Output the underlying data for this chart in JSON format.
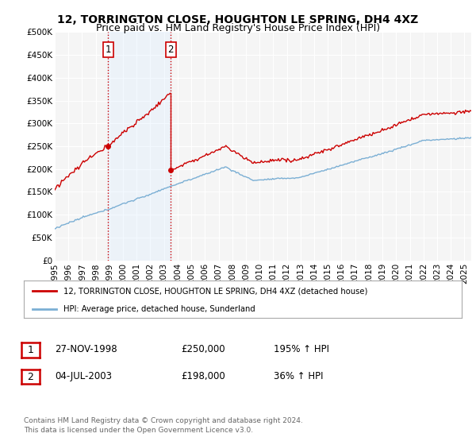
{
  "title": "12, TORRINGTON CLOSE, HOUGHTON LE SPRING, DH4 4XZ",
  "subtitle": "Price paid vs. HM Land Registry's House Price Index (HPI)",
  "ylim": [
    0,
    500000
  ],
  "yticks": [
    0,
    50000,
    100000,
    150000,
    200000,
    250000,
    300000,
    350000,
    400000,
    450000,
    500000
  ],
  "ytick_labels": [
    "£0",
    "£50K",
    "£100K",
    "£150K",
    "£200K",
    "£250K",
    "£300K",
    "£350K",
    "£400K",
    "£450K",
    "£500K"
  ],
  "hpi_color": "#7bafd4",
  "price_color": "#cc0000",
  "sale1_date_x": 1998.92,
  "sale1_price": 250000,
  "sale2_date_x": 2003.5,
  "sale2_price": 198000,
  "sale1_label": "1",
  "sale2_label": "2",
  "legend_line1": "12, TORRINGTON CLOSE, HOUGHTON LE SPRING, DH4 4XZ (detached house)",
  "legend_line2": "HPI: Average price, detached house, Sunderland",
  "table_row1": [
    "1",
    "27-NOV-1998",
    "£250,000",
    "195% ↑ HPI"
  ],
  "table_row2": [
    "2",
    "04-JUL-2003",
    "£198,000",
    "36% ↑ HPI"
  ],
  "footer": "Contains HM Land Registry data © Crown copyright and database right 2024.\nThis data is licensed under the Open Government Licence v3.0.",
  "bg_color": "#ffffff",
  "plot_bg": "#f5f5f5",
  "grid_color": "#ffffff",
  "vline_color": "#cc0000",
  "shade_color": "#ddeeff",
  "title_fontsize": 10,
  "subtitle_fontsize": 9,
  "tick_fontsize": 7.5,
  "xlim_start": 1995.0,
  "xlim_end": 2025.5
}
